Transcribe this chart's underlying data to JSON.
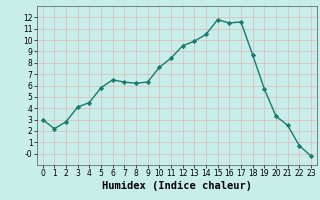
{
  "xlabel": "Humidex (Indice chaleur)",
  "x": [
    0,
    1,
    2,
    3,
    4,
    5,
    6,
    7,
    8,
    9,
    10,
    11,
    12,
    13,
    14,
    15,
    16,
    17,
    18,
    19,
    20,
    21,
    22,
    23
  ],
  "y": [
    3.0,
    2.2,
    2.8,
    4.1,
    4.5,
    5.8,
    6.5,
    6.3,
    6.2,
    6.3,
    7.6,
    8.4,
    9.5,
    9.9,
    10.5,
    11.8,
    11.5,
    11.6,
    8.7,
    5.7,
    3.3,
    2.5,
    0.7,
    -0.2
  ],
  "line_color": "#1a7a6e",
  "marker": "D",
  "marker_size": 2.2,
  "bg_color": "#c8eeea",
  "grid_color": "#e0b8b8",
  "plot_bg_color": "#c8eeea",
  "ylim": [
    -1,
    13
  ],
  "xlim": [
    -0.5,
    23.5
  ],
  "yticks": [
    0,
    1,
    2,
    3,
    4,
    5,
    6,
    7,
    8,
    9,
    10,
    11,
    12
  ],
  "ytick_labels": [
    "-0",
    "1",
    "2",
    "3",
    "4",
    "5",
    "6",
    "7",
    "8",
    "9",
    "10",
    "11",
    "12"
  ],
  "xticks": [
    0,
    1,
    2,
    3,
    4,
    5,
    6,
    7,
    8,
    9,
    10,
    11,
    12,
    13,
    14,
    15,
    16,
    17,
    18,
    19,
    20,
    21,
    22,
    23
  ],
  "tick_fontsize": 5.5,
  "xlabel_fontsize": 7.5,
  "linewidth": 1.0
}
